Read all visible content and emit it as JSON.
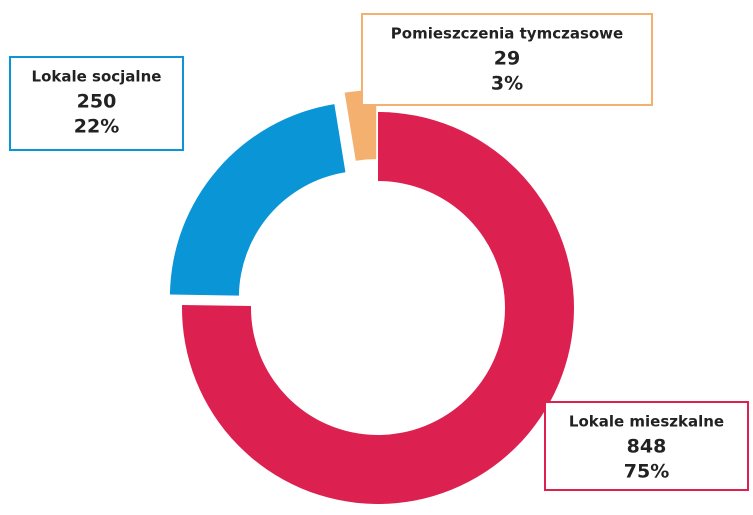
{
  "chart_data": {
    "type": "donut",
    "categories": [
      "Lokale mieszkalne",
      "Lokale socjalne",
      "Pomieszczenia tymczasowe"
    ],
    "values": [
      848,
      250,
      29
    ],
    "percent_labels": [
      "75%",
      "22%",
      "3%"
    ],
    "colors": [
      "#dc2151",
      "#0a96d6",
      "#f4b06f"
    ]
  }
}
